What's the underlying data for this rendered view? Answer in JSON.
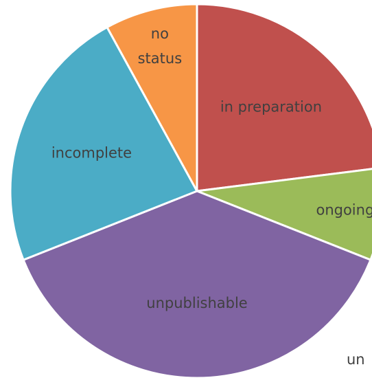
{
  "chart_data": {
    "type": "pie",
    "categories": [
      "in preparation",
      "ongoing",
      "unpublishable",
      "incomplete",
      "no status"
    ],
    "values": [
      23,
      8,
      38,
      23,
      8
    ],
    "colors": [
      "#c0504d",
      "#9bbb59",
      "#8064a2",
      "#4bacc6",
      "#f79646"
    ],
    "annotation": "un"
  }
}
